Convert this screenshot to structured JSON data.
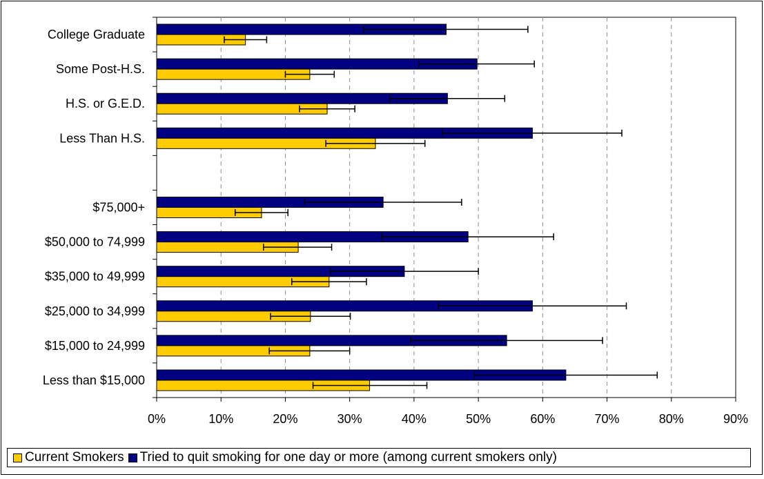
{
  "chart_data": {
    "type": "bar",
    "orientation": "horizontal",
    "title": "",
    "xlabel": "",
    "ylabel": "",
    "xlim": [
      0,
      0.9
    ],
    "x_tick_labels": [
      "0%",
      "10%",
      "20%",
      "30%",
      "40%",
      "50%",
      "60%",
      "70%",
      "80%",
      "90%"
    ],
    "grid": "vertical dashed",
    "legend_position": "bottom",
    "categories": [
      "College Graduate",
      "Some Post-H.S.",
      "H.S. or G.E.D.",
      "Less Than H.S.",
      "",
      "$75,000+",
      "$50,000 to 74,999",
      "$35,000 to 49,999",
      "$25,000 to 34,999",
      "$15,000 to 24,999",
      "Less than $15,000"
    ],
    "series": [
      {
        "name": "Current Smokers",
        "color": "#FFCC00",
        "values": [
          0.138,
          0.238,
          0.265,
          0.34,
          null,
          0.163,
          0.22,
          0.268,
          0.239,
          0.238,
          0.331
        ],
        "error_low": [
          0.105,
          0.2,
          0.222,
          0.263,
          null,
          0.122,
          0.166,
          0.21,
          0.177,
          0.175,
          0.243
        ],
        "error_high": [
          0.171,
          0.276,
          0.308,
          0.417,
          null,
          0.204,
          0.272,
          0.326,
          0.301,
          0.3,
          0.42
        ]
      },
      {
        "name": "Tried to quit smoking for one day or more (among current smokers only)",
        "color": "#000080",
        "values": [
          0.45,
          0.498,
          0.452,
          0.584,
          null,
          0.352,
          0.484,
          0.385,
          0.584,
          0.544,
          0.636
        ],
        "error_low": [
          0.322,
          0.408,
          0.362,
          0.444,
          null,
          0.23,
          0.35,
          0.27,
          0.438,
          0.395,
          0.494
        ],
        "error_high": [
          0.577,
          0.587,
          0.541,
          0.723,
          null,
          0.474,
          0.617,
          0.5,
          0.73,
          0.693,
          0.778
        ]
      }
    ]
  }
}
